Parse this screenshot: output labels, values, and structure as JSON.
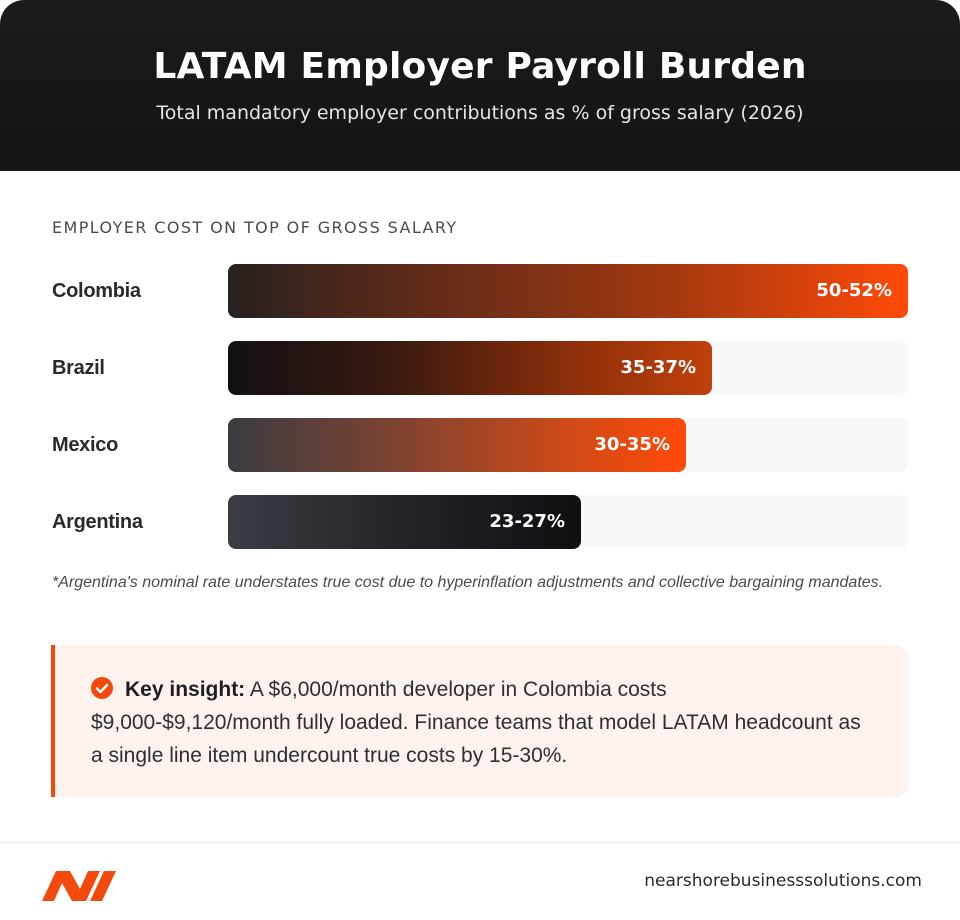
{
  "header": {
    "title": "LATAM Employer Payroll Burden",
    "subtitle": "Total mandatory employer contributions as % of gross salary (2026)"
  },
  "colors": {
    "accent": "#f24a0c",
    "dark": "#151315",
    "track": "#f8f8f8"
  },
  "chart_data": {
    "type": "bar",
    "orientation": "horizontal",
    "title": "EMPLOYER COST ON TOP OF GROSS SALARY",
    "categories": [
      "Colombia",
      "Brazil",
      "Mexico",
      "Argentina"
    ],
    "value_labels": [
      "50-52%",
      "35-37%",
      "30-35%",
      "23-27%"
    ],
    "values": [
      52,
      37,
      35,
      27
    ],
    "xlim": [
      0,
      52
    ],
    "grid": false,
    "legend": "none"
  },
  "footnote": "*Argentina's nominal rate understates true cost due to hyperinflation adjustments and collective bargaining mandates.",
  "insight": {
    "icon": "check-circle-icon",
    "label": "Key insight:",
    "text": " A $6,000/month developer in Colombia costs $9,000-$9,120/month fully loaded. Finance teams that model LATAM headcount as a single line item undercount true costs by 15-30%."
  },
  "footer": {
    "logo_icon": "nearshore-logo-icon",
    "site": "nearshorebusinesssolutions.com"
  }
}
